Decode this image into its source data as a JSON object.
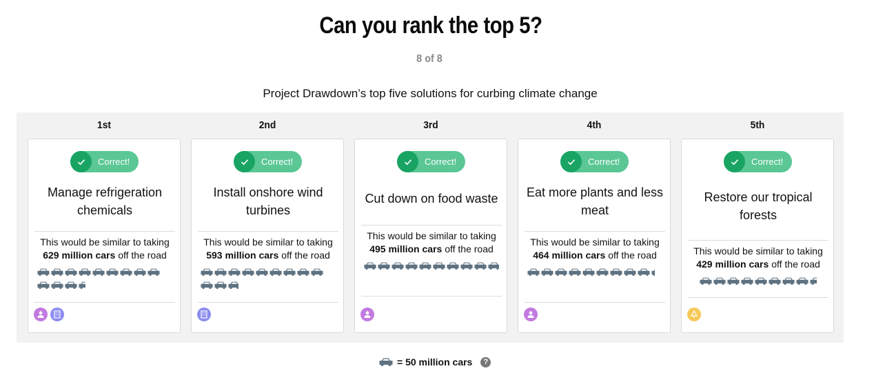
{
  "title": "Can you rank the top 5?",
  "progress": "8 of 8",
  "subtitle": "Project Drawdown’s top five solutions for curbing climate change",
  "colors": {
    "badge_bg": "#5ac795",
    "badge_check": "#19a464",
    "car": "#5e7281",
    "person_icon": "#c27be0",
    "building_icon": "#8b8df0",
    "tree_icon": "#f5c95a"
  },
  "impact_prefix": "This would be similar to taking",
  "impact_suffix": "off the road",
  "solutions": [
    {
      "rank": "1st",
      "badge": "Correct!",
      "name": "Manage refrigeration chemicals",
      "cars_label": "629 million cars",
      "car_units": 12.58,
      "icons": [
        "person-icon",
        "building-icon"
      ]
    },
    {
      "rank": "2nd",
      "badge": "Correct!",
      "name": "Install onshore wind turbines",
      "cars_label": "593 million cars",
      "car_units": 11.86,
      "icons": [
        "building-icon"
      ]
    },
    {
      "rank": "3rd",
      "badge": "Correct!",
      "name": "Cut down on food waste",
      "cars_label": "495 million cars",
      "car_units": 9.9,
      "icons": [
        "person-icon"
      ]
    },
    {
      "rank": "4th",
      "badge": "Correct!",
      "name": "Eat more plants and less meat",
      "cars_label": "464 million cars",
      "car_units": 9.28,
      "icons": [
        "person-icon"
      ]
    },
    {
      "rank": "5th",
      "badge": "Correct!",
      "name": "Restore our tropical forests",
      "cars_label": "429 million cars",
      "car_units": 8.58,
      "icons": [
        "tree-icon"
      ]
    }
  ],
  "legend": {
    "text": "= 50 million cars",
    "help": "?"
  }
}
